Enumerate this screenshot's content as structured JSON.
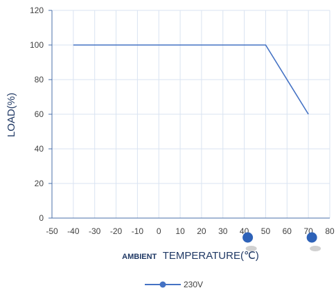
{
  "chart_data": {
    "type": "line",
    "xlabel_prefix": "AMBIENT",
    "xlabel_main": "TEMPERATURE(℃)",
    "ylabel": "LOAD(%)",
    "xlim": [
      -50,
      80
    ],
    "ylim": [
      0,
      120
    ],
    "x_ticks": [
      -50,
      -40,
      -30,
      -20,
      -10,
      0,
      10,
      20,
      30,
      40,
      50,
      60,
      70,
      80
    ],
    "y_ticks": [
      0,
      20,
      40,
      60,
      80,
      100,
      120
    ],
    "grid": true,
    "legend_position": "bottom-center",
    "series": [
      {
        "name": "230V",
        "color": "#4472c4",
        "x": [
          -40,
          50,
          70
        ],
        "y": [
          100,
          100,
          60
        ]
      }
    ],
    "markers": [
      {
        "x": 40,
        "color": "#2e62b8"
      },
      {
        "x": 70,
        "color": "#2e62b8"
      }
    ]
  }
}
